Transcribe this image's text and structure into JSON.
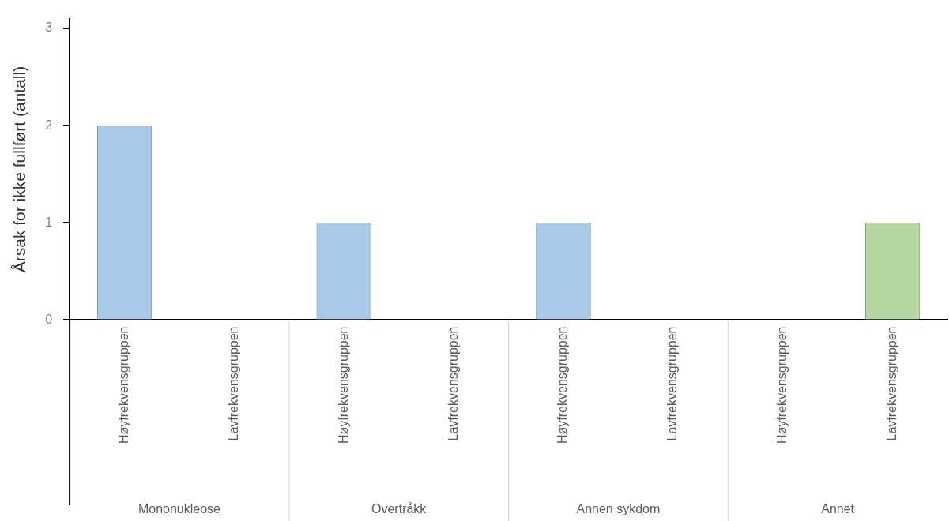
{
  "chart_data": {
    "type": "bar",
    "ylabel": "Årsak for ikke fullført (antall)",
    "categories": [
      "Høyfrekvensgruppen",
      "Lavfrekvensgruppen",
      "Høyfrekvensgruppen",
      "Lavfrekvensgruppen",
      "Høyfrekvensgruppen",
      "Lavfrekvensgruppen",
      "Høyfrekvensgruppen",
      "Lavfrekvensgruppen"
    ],
    "values": [
      2,
      0,
      1,
      0,
      1,
      0,
      0,
      1
    ],
    "colors": [
      "#a9c9e9",
      "#b5d6a0",
      "#a9c9e9",
      "#b5d6a0",
      "#a9c9e9",
      "#b5d6a0",
      "#a9c9e9",
      "#b5d6a0"
    ],
    "annotations": [
      "Mononukleose",
      "Overtråkk",
      "Annen sykdom",
      "Annet"
    ],
    "ylim": [
      0,
      3.1
    ],
    "yticks": [
      0,
      1,
      2,
      3
    ],
    "grid": false,
    "legend": false
  }
}
